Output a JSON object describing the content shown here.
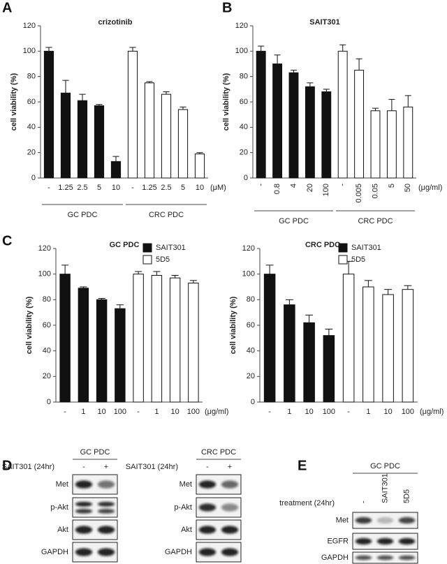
{
  "chart_data": [
    {
      "type": "bar",
      "panel": "A",
      "title": "crizotinib",
      "y_label": "cell viability (%)",
      "x_unit": "(μM)",
      "categories": [
        "-",
        "1.25",
        "2.5",
        "5",
        "10",
        "-",
        "1.25",
        "2.5",
        "5",
        "10"
      ],
      "series": [
        {
          "name": "GC PDC",
          "color": "#111111",
          "values": [
            100,
            67,
            61,
            57,
            13,
            null,
            null,
            null,
            null,
            null
          ],
          "errors": [
            3,
            10,
            5,
            1,
            4,
            null,
            null,
            null,
            null,
            null
          ]
        },
        {
          "name": "CRC PDC",
          "color": "#ffffff",
          "values": [
            null,
            null,
            null,
            null,
            null,
            100,
            75,
            66,
            54,
            19
          ],
          "errors": [
            null,
            null,
            null,
            null,
            null,
            3,
            1,
            2,
            2,
            1
          ]
        }
      ],
      "series_labels": "bracket",
      "xlabel_rotation": 0,
      "ylim": [
        0,
        120
      ],
      "yticks": [
        0,
        20,
        40,
        60,
        80,
        100,
        120
      ]
    },
    {
      "type": "bar",
      "panel": "B",
      "title": "SAIT301",
      "y_label": "cell viability (%)",
      "x_unit": "(μg/ml)",
      "categories": [
        "-",
        "0.8",
        "4",
        "20",
        "100",
        "-",
        "0.005",
        "0.05",
        "5",
        "50"
      ],
      "series": [
        {
          "name": "GC PDC",
          "color": "#111111",
          "values": [
            100,
            90,
            83,
            72,
            68,
            null,
            null,
            null,
            null,
            null
          ],
          "errors": [
            4,
            7,
            2,
            3,
            2,
            null,
            null,
            null,
            null,
            null
          ]
        },
        {
          "name": "CRC PDC",
          "color": "#ffffff",
          "values": [
            null,
            null,
            null,
            null,
            null,
            100,
            85,
            53,
            53,
            56
          ],
          "errors": [
            null,
            null,
            null,
            null,
            null,
            5,
            9,
            2,
            9,
            9
          ]
        }
      ],
      "series_labels": "bracket",
      "xlabel_rotation": -90,
      "ylim": [
        0,
        120
      ],
      "yticks": [
        0,
        20,
        40,
        60,
        80,
        100,
        120
      ]
    },
    {
      "type": "bar",
      "panel": "C",
      "title": "GC PDC",
      "y_label": "cell viability (%)",
      "x_unit": "(μg/ml)",
      "categories": [
        "-",
        "1",
        "10",
        "100",
        "-",
        "1",
        "10",
        "100"
      ],
      "series": [
        {
          "name": "SAIT301",
          "color": "#111111",
          "values": [
            100,
            89,
            80,
            73,
            null,
            null,
            null,
            null
          ],
          "errors": [
            7,
            1,
            1,
            3,
            null,
            null,
            null,
            null
          ]
        },
        {
          "name": "5D5",
          "color": "#ffffff",
          "values": [
            null,
            null,
            null,
            null,
            100,
            99,
            97,
            93
          ],
          "errors": [
            null,
            null,
            null,
            null,
            2,
            3,
            2,
            2
          ]
        }
      ],
      "series_labels": "legend",
      "xlabel_rotation": 0,
      "ylim": [
        0,
        120
      ],
      "yticks": [
        0,
        20,
        40,
        60,
        80,
        100,
        120
      ]
    },
    {
      "type": "bar",
      "title": "CRC PDC",
      "y_label": "cell viability (%)",
      "x_unit": "(μg/ml)",
      "categories": [
        "-",
        "1",
        "10",
        "100",
        "-",
        "1",
        "10",
        "100"
      ],
      "series": [
        {
          "name": "SAIT301",
          "color": "#111111",
          "values": [
            100,
            76,
            62,
            52,
            null,
            null,
            null,
            null
          ],
          "errors": [
            7,
            4,
            6,
            5,
            null,
            null,
            null,
            null
          ]
        },
        {
          "name": "5D5",
          "color": "#ffffff",
          "values": [
            null,
            null,
            null,
            null,
            100,
            90,
            84,
            88
          ],
          "errors": [
            null,
            null,
            null,
            null,
            10,
            5,
            4,
            3
          ]
        }
      ],
      "series_labels": "legend",
      "xlabel_rotation": 0,
      "ylim": [
        0,
        120
      ],
      "yticks": [
        0,
        20,
        40,
        60,
        80,
        100,
        120
      ]
    }
  ],
  "blots": [
    {
      "panel": "D",
      "title": "GC PDC",
      "treatment": "SAIT301 (24hr)",
      "lanes": [
        "-",
        "+"
      ],
      "rows": [
        "Met",
        "p-Akt",
        "Akt",
        "GAPDH"
      ]
    },
    {
      "title": "CRC PDC",
      "treatment": "SAIT301 (24hr)",
      "lanes": [
        "-",
        "+"
      ],
      "rows": [
        "Met",
        "p-Akt",
        "Akt",
        "GAPDH"
      ]
    },
    {
      "panel": "E",
      "title": "GC PDC",
      "treatment": "treatment (24hr)",
      "lanes": [
        "-",
        "SAIT301",
        "5D5"
      ],
      "rows": [
        "Met",
        "EGFR",
        "GAPDH"
      ]
    }
  ]
}
